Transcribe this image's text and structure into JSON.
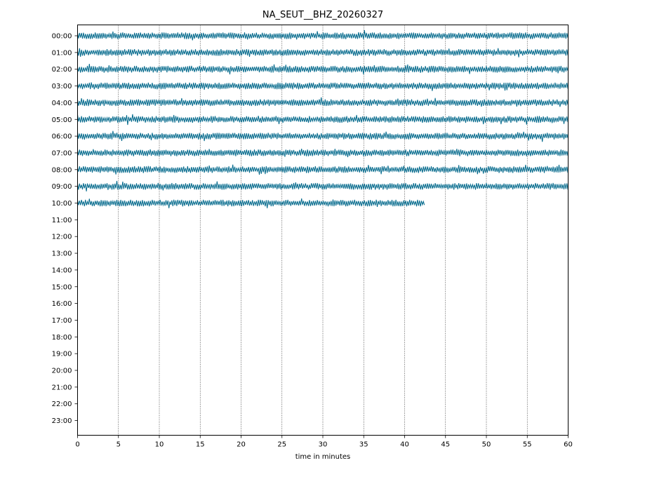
{
  "chart_data": {
    "type": "line",
    "title": "NA_SEUT__BHZ_20260327",
    "xlabel": "time in minutes",
    "ylabel": "",
    "xlim": [
      0,
      60
    ],
    "x_ticks": [
      0,
      5,
      10,
      15,
      20,
      25,
      30,
      35,
      40,
      45,
      50,
      55,
      60
    ],
    "y_tick_labels": [
      "00:00",
      "01:00",
      "02:00",
      "03:00",
      "04:00",
      "05:00",
      "06:00",
      "07:00",
      "08:00",
      "09:00",
      "10:00",
      "11:00",
      "12:00",
      "13:00",
      "14:00",
      "15:00",
      "16:00",
      "17:00",
      "18:00",
      "19:00",
      "20:00",
      "21:00",
      "22:00",
      "23:00"
    ],
    "grid": "vertical dotted lines at each x tick",
    "trace_color": "#00688B",
    "rows": [
      {
        "hour": "00:00",
        "x_start": 0,
        "x_end": 60
      },
      {
        "hour": "01:00",
        "x_start": 0,
        "x_end": 60
      },
      {
        "hour": "02:00",
        "x_start": 0,
        "x_end": 60
      },
      {
        "hour": "03:00",
        "x_start": 0,
        "x_end": 60
      },
      {
        "hour": "04:00",
        "x_start": 0,
        "x_end": 60
      },
      {
        "hour": "05:00",
        "x_start": 0,
        "x_end": 60
      },
      {
        "hour": "06:00",
        "x_start": 0,
        "x_end": 60
      },
      {
        "hour": "07:00",
        "x_start": 0,
        "x_end": 60
      },
      {
        "hour": "08:00",
        "x_start": 0,
        "x_end": 60
      },
      {
        "hour": "09:00",
        "x_start": 0,
        "x_end": 60
      },
      {
        "hour": "10:00",
        "x_start": 0,
        "x_end": 42.5
      }
    ]
  }
}
